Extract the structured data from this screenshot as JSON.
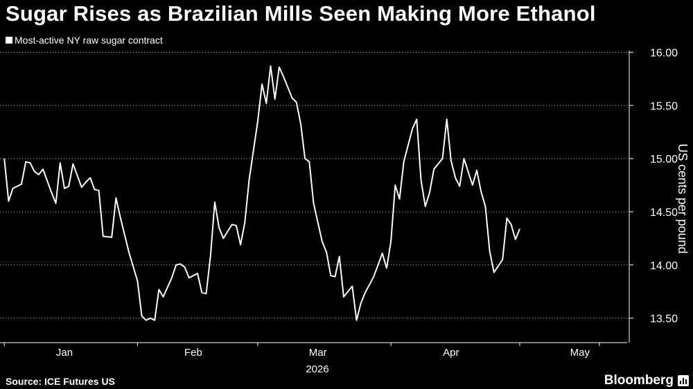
{
  "header": {
    "title": "Sugar Rises as Brazilian Mills Seen Making More Ethanol"
  },
  "footer": {
    "source": "Source: ICE Futures US",
    "brand": "Bloomberg"
  },
  "colors": {
    "background": "#000000",
    "line": "#ffffff",
    "grid": "#ffffff"
  },
  "chart_data": {
    "type": "line",
    "title": "Sugar Rises as Brazilian Mills Seen Making More Ethanol",
    "ylabel": "US cents per pound",
    "xlabel": "2026",
    "ylim": [
      13.27,
      16.12
    ],
    "xlim": [
      "2025-12-31",
      "2026-05-26"
    ],
    "grid": "horizontal dotted",
    "y_axis_side": "right",
    "legend_position": "top-left",
    "yticks": [
      13.5,
      14.0,
      14.5,
      15.0,
      15.5,
      16.0
    ],
    "ytick_labels": [
      "13.50",
      "14.00",
      "14.50",
      "15.00",
      "15.50",
      "16.00"
    ],
    "xticks": [
      {
        "date": "2026-01-15",
        "label": "Jan"
      },
      {
        "date": "2026-02-14",
        "label": "Feb"
      },
      {
        "date": "2026-03-15",
        "label": "Mar"
      },
      {
        "date": "2026-04-15",
        "label": "Apr"
      },
      {
        "date": "2026-05-15",
        "label": "May"
      }
    ],
    "xtick_bounds": [
      "2026-01-01",
      "2026-02-01",
      "2026-03-01",
      "2026-04-01",
      "2026-05-01",
      "2026-06-01"
    ],
    "series": [
      {
        "name": "Most-active NY raw sugar contract",
        "points": [
          [
            "2026-01-01",
            15.0
          ],
          [
            "2026-01-02",
            14.6
          ],
          [
            "2026-01-03",
            14.72
          ],
          [
            "2026-01-05",
            14.76
          ],
          [
            "2026-01-06",
            14.97
          ],
          [
            "2026-01-07",
            14.96
          ],
          [
            "2026-01-08",
            14.88
          ],
          [
            "2026-01-09",
            14.85
          ],
          [
            "2026-01-10",
            14.9
          ],
          [
            "2026-01-12",
            14.68
          ],
          [
            "2026-01-13",
            14.58
          ],
          [
            "2026-01-14",
            14.96
          ],
          [
            "2026-01-15",
            14.72
          ],
          [
            "2026-01-16",
            14.74
          ],
          [
            "2026-01-17",
            14.95
          ],
          [
            "2026-01-19",
            14.73
          ],
          [
            "2026-01-20",
            14.78
          ],
          [
            "2026-01-21",
            14.82
          ],
          [
            "2026-01-22",
            14.71
          ],
          [
            "2026-01-23",
            14.7
          ],
          [
            "2026-01-24",
            14.27
          ],
          [
            "2026-01-26",
            14.26
          ],
          [
            "2026-01-27",
            14.63
          ],
          [
            "2026-01-28",
            14.45
          ],
          [
            "2026-01-30",
            14.12
          ],
          [
            "2026-02-01",
            13.85
          ],
          [
            "2026-02-02",
            13.52
          ],
          [
            "2026-02-03",
            13.48
          ],
          [
            "2026-02-04",
            13.5
          ],
          [
            "2026-02-05",
            13.48
          ],
          [
            "2026-02-06",
            13.77
          ],
          [
            "2026-02-07",
            13.7
          ],
          [
            "2026-02-09",
            13.88
          ],
          [
            "2026-02-10",
            14.0
          ],
          [
            "2026-02-11",
            14.01
          ],
          [
            "2026-02-12",
            13.98
          ],
          [
            "2026-02-13",
            13.88
          ],
          [
            "2026-02-14",
            13.9
          ],
          [
            "2026-02-15",
            13.92
          ],
          [
            "2026-02-16",
            13.74
          ],
          [
            "2026-02-17",
            13.73
          ],
          [
            "2026-02-18",
            14.08
          ],
          [
            "2026-02-19",
            14.59
          ],
          [
            "2026-02-20",
            14.35
          ],
          [
            "2026-02-21",
            14.25
          ],
          [
            "2026-02-23",
            14.38
          ],
          [
            "2026-02-24",
            14.37
          ],
          [
            "2026-02-25",
            14.19
          ],
          [
            "2026-02-26",
            14.4
          ],
          [
            "2026-02-27",
            14.8
          ],
          [
            "2026-03-01",
            15.35
          ],
          [
            "2026-03-02",
            15.7
          ],
          [
            "2026-03-03",
            15.52
          ],
          [
            "2026-03-04",
            15.87
          ],
          [
            "2026-03-05",
            15.56
          ],
          [
            "2026-03-06",
            15.86
          ],
          [
            "2026-03-07",
            15.77
          ],
          [
            "2026-03-09",
            15.57
          ],
          [
            "2026-03-10",
            15.53
          ],
          [
            "2026-03-11",
            15.33
          ],
          [
            "2026-03-12",
            15.0
          ],
          [
            "2026-03-13",
            14.97
          ],
          [
            "2026-03-14",
            14.58
          ],
          [
            "2026-03-16",
            14.22
          ],
          [
            "2026-03-17",
            14.12
          ],
          [
            "2026-03-18",
            13.9
          ],
          [
            "2026-03-19",
            13.89
          ],
          [
            "2026-03-20",
            14.08
          ],
          [
            "2026-03-21",
            13.7
          ],
          [
            "2026-03-23",
            13.8
          ],
          [
            "2026-03-24",
            13.48
          ],
          [
            "2026-03-25",
            13.64
          ],
          [
            "2026-03-26",
            13.74
          ],
          [
            "2026-03-28",
            13.89
          ],
          [
            "2026-03-30",
            14.11
          ],
          [
            "2026-03-31",
            13.97
          ],
          [
            "2026-04-01",
            14.22
          ],
          [
            "2026-04-02",
            14.75
          ],
          [
            "2026-04-03",
            14.62
          ],
          [
            "2026-04-04",
            14.97
          ],
          [
            "2026-04-06",
            15.28
          ],
          [
            "2026-04-07",
            15.37
          ],
          [
            "2026-04-08",
            14.8
          ],
          [
            "2026-04-09",
            14.55
          ],
          [
            "2026-04-10",
            14.68
          ],
          [
            "2026-04-11",
            14.9
          ],
          [
            "2026-04-13",
            15.0
          ],
          [
            "2026-04-14",
            15.37
          ],
          [
            "2026-04-15",
            14.98
          ],
          [
            "2026-04-16",
            14.82
          ],
          [
            "2026-04-17",
            14.74
          ],
          [
            "2026-04-18",
            15.0
          ],
          [
            "2026-04-20",
            14.75
          ],
          [
            "2026-04-21",
            14.89
          ],
          [
            "2026-04-22",
            14.69
          ],
          [
            "2026-04-23",
            14.55
          ],
          [
            "2026-04-24",
            14.13
          ],
          [
            "2026-04-25",
            13.93
          ],
          [
            "2026-04-27",
            14.05
          ],
          [
            "2026-04-28",
            14.44
          ],
          [
            "2026-04-29",
            14.38
          ],
          [
            "2026-04-30",
            14.24
          ],
          [
            "2026-05-01",
            14.34
          ]
        ]
      }
    ]
  }
}
